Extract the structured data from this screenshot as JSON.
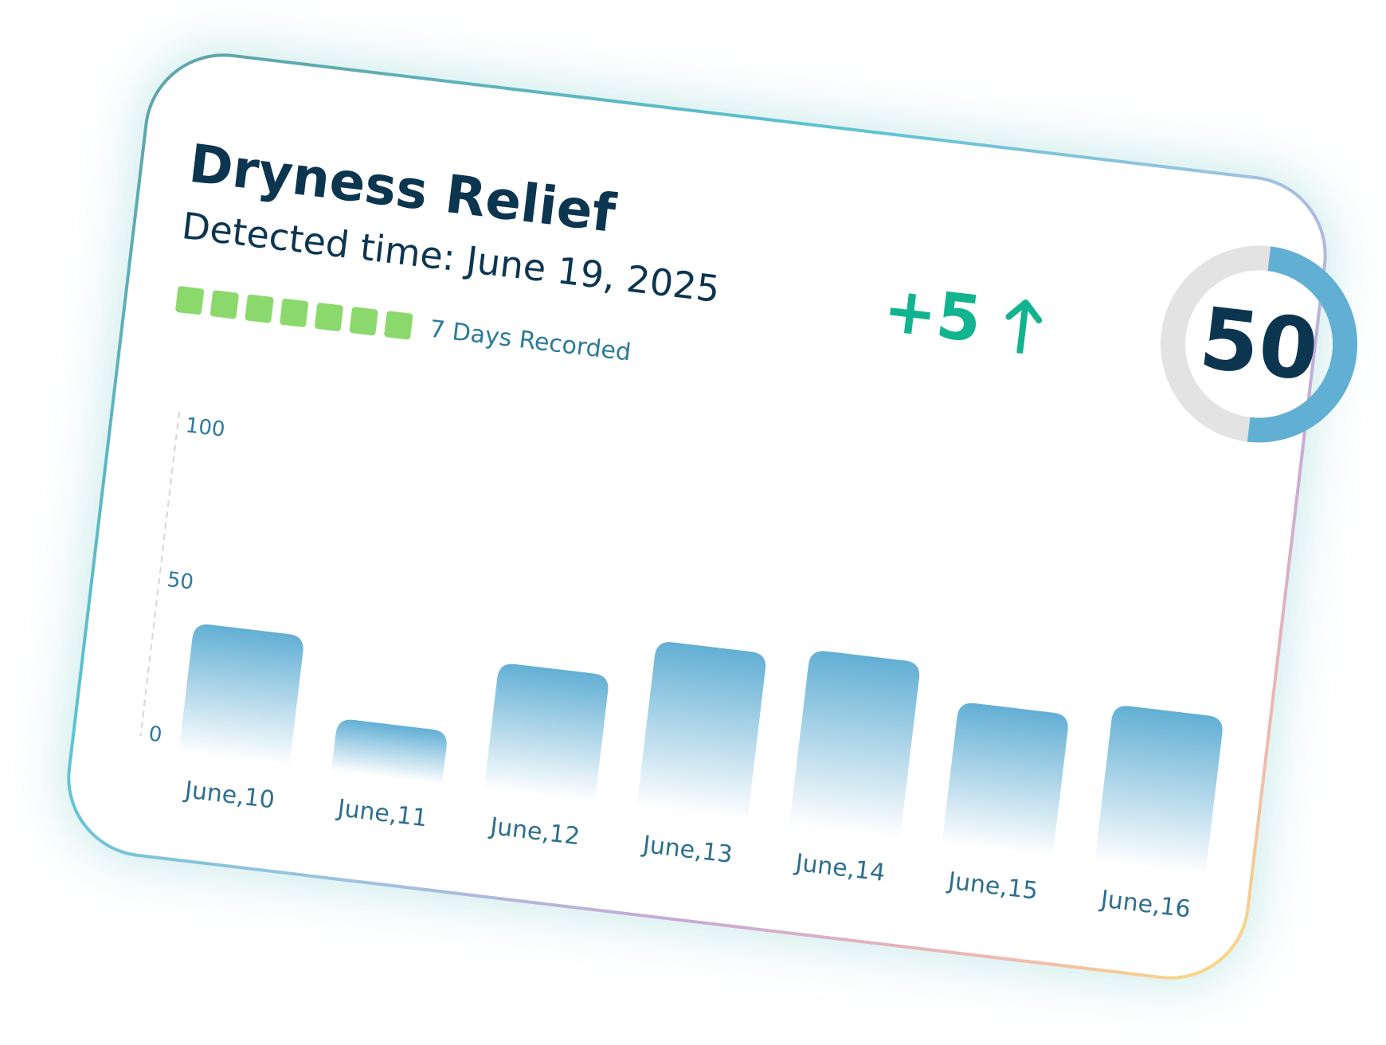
{
  "card": {
    "title": "Dryness Relief",
    "subtitle": "Detected time: June 19, 2025",
    "days_recorded": {
      "count": 7,
      "label": "7 Days Recorded",
      "color": "#8bd96c"
    },
    "change": {
      "value": "+5",
      "direction": "up",
      "icon": "arrow-up-icon",
      "color": "#12b48f"
    },
    "score": {
      "value": "50",
      "percent": 50,
      "fill_color": "#62afd4",
      "track_color": "#e3e3e3"
    }
  },
  "chart_data": {
    "type": "bar",
    "categories": [
      "June,10",
      "June,11",
      "June,12",
      "June,13",
      "June,14",
      "June,15",
      "June,16"
    ],
    "values": [
      37,
      12,
      36,
      49,
      52,
      41,
      46
    ],
    "yticks": [
      "0",
      "50",
      "100"
    ],
    "ylim": [
      0,
      100
    ],
    "xlabel": "",
    "ylabel": "",
    "title": "",
    "bar_color": "#62afd4",
    "grid": false
  }
}
